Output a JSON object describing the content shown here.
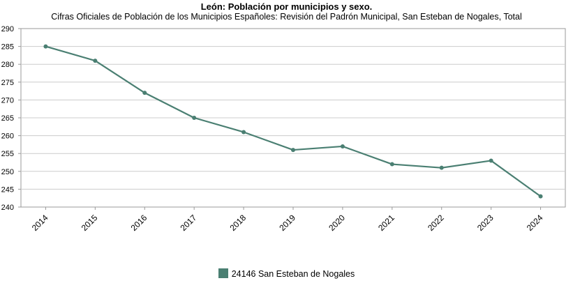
{
  "chart_data": {
    "type": "line",
    "title": "León: Población por municipios y sexo.",
    "subtitle": "Cifras Oficiales de Población de los Municipios Españoles: Revisión del Padrón Municipal, San Esteban de Nogales, Total",
    "categories": [
      "2014",
      "2015",
      "2016",
      "2017",
      "2018",
      "2019",
      "2020",
      "2021",
      "2022",
      "2023",
      "2024"
    ],
    "series": [
      {
        "name": "24146 San Esteban de Nogales",
        "values": [
          285,
          281,
          272,
          265,
          261,
          256,
          257,
          252,
          251,
          253,
          243
        ]
      }
    ],
    "ylim": [
      240,
      290
    ],
    "yticks": [
      240,
      245,
      250,
      255,
      260,
      265,
      270,
      275,
      280,
      285,
      290
    ],
    "grid": true,
    "legend": "bottom-center",
    "colors": {
      "series": "#4a7f72",
      "grid": "#cccccc",
      "axis": "#999999"
    }
  }
}
